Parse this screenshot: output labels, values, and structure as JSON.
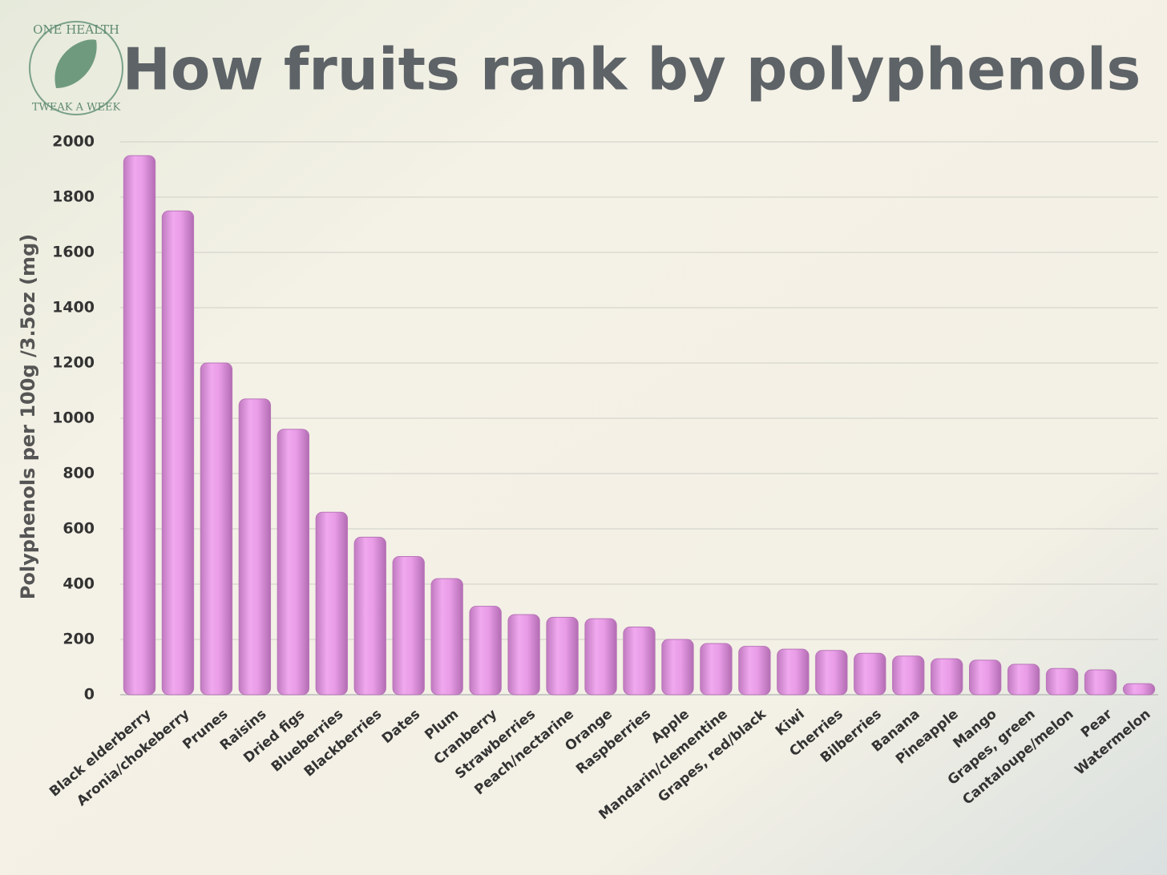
{
  "chart_data": {
    "type": "bar",
    "title": "How fruits rank by polyphenols",
    "annotations": [
      "ONE HEALTH",
      "TWEAK A WEEK"
    ],
    "y_label": "Polyphenols per 100g /3.5oz (mg)",
    "categories": [
      "Black elderberry",
      "Aronia/chokeberry",
      "Prunes",
      "Raisins",
      "Dried figs",
      "Blueberries",
      "Blackberries",
      "Dates",
      "Plum",
      "Cranberry",
      "Strawberries",
      "Peach/nectarine",
      "Orange",
      "Raspberries",
      "Apple",
      "Mandarin/clementine",
      "Grapes, red/black",
      "Kiwi",
      "Cherries",
      "Bilberries",
      "Banana",
      "Pineapple",
      "Mango",
      "Grapes, green",
      "Cantaloupe/melon",
      "Pear",
      "Watermelon"
    ],
    "values": [
      1950,
      1750,
      1200,
      1070,
      960,
      660,
      570,
      500,
      420,
      320,
      290,
      280,
      275,
      245,
      200,
      185,
      175,
      165,
      160,
      150,
      140,
      130,
      125,
      110,
      95,
      90,
      40
    ],
    "color": "#dd92dd",
    "ylim": [
      0,
      2000
    ],
    "yticks": [
      0,
      200,
      400,
      600,
      800,
      1000,
      1200,
      1400,
      1600,
      1800,
      2000
    ],
    "grid": true
  }
}
